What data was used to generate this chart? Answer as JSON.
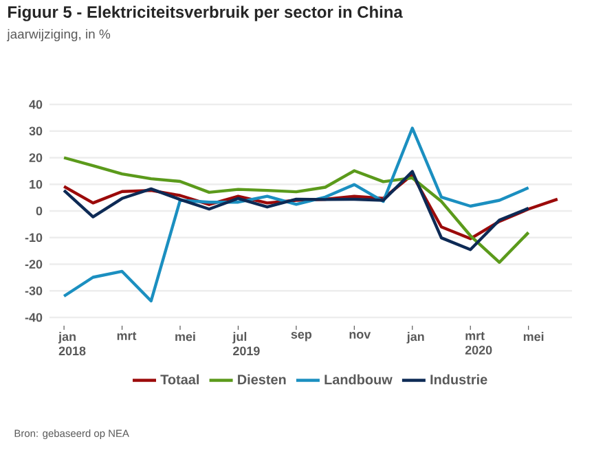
{
  "chart_data": {
    "type": "line",
    "title": "Figuur 5 - Elektriciteitsverbruik per sector in China",
    "subtitle": "jaarwijziging, in %",
    "categories": [
      "jan 2018",
      null,
      "mrt",
      null,
      "mei",
      null,
      "jul 2019",
      null,
      "sep",
      null,
      "nov",
      null,
      "jan",
      null,
      "mrt 2020",
      null,
      "mei",
      null
    ],
    "series": [
      {
        "name": "Totaal",
        "color": "#9b0a0a",
        "values": [
          9.2,
          3,
          7.3,
          7.7,
          5.8,
          2.4,
          5.5,
          3,
          4,
          4.4,
          5.5,
          4.7,
          13.6,
          -6,
          -10.4,
          -3.9,
          0.7,
          4.4
        ]
      },
      {
        "name": "Diesten",
        "color": "#5b9a1b",
        "values": [
          20,
          17,
          13.9,
          12.1,
          11.1,
          7,
          8.1,
          7.7,
          7.2,
          8.9,
          15.1,
          11,
          12.4,
          3.6,
          -9.3,
          -19.3,
          -8.1,
          null
        ]
      },
      {
        "name": "Landbouw",
        "color": "#1b8fc0",
        "values": [
          -32,
          -24.9,
          -22.7,
          -33.8,
          4,
          3.3,
          3.3,
          5.5,
          2.5,
          5.2,
          9.9,
          3.6,
          31.1,
          5.2,
          1.8,
          4,
          8.7,
          null
        ]
      },
      {
        "name": "Industrie",
        "color": "#0d2a55",
        "values": [
          7.7,
          -2.2,
          4.7,
          8.3,
          4.3,
          0.7,
          4.7,
          1.5,
          4.4,
          4.3,
          4.4,
          4,
          14.8,
          -10.1,
          -14.5,
          -3.4,
          1,
          null
        ]
      }
    ],
    "ylim": [
      -40,
      40
    ],
    "yticks": [
      -40,
      -30,
      -20,
      -10,
      0,
      10,
      20,
      30,
      40
    ],
    "grid": "y",
    "legend": "bottom",
    "marker": "none",
    "line_style": "solid",
    "annotations": [
      "Bron: gebaseerd op NEA"
    ]
  }
}
